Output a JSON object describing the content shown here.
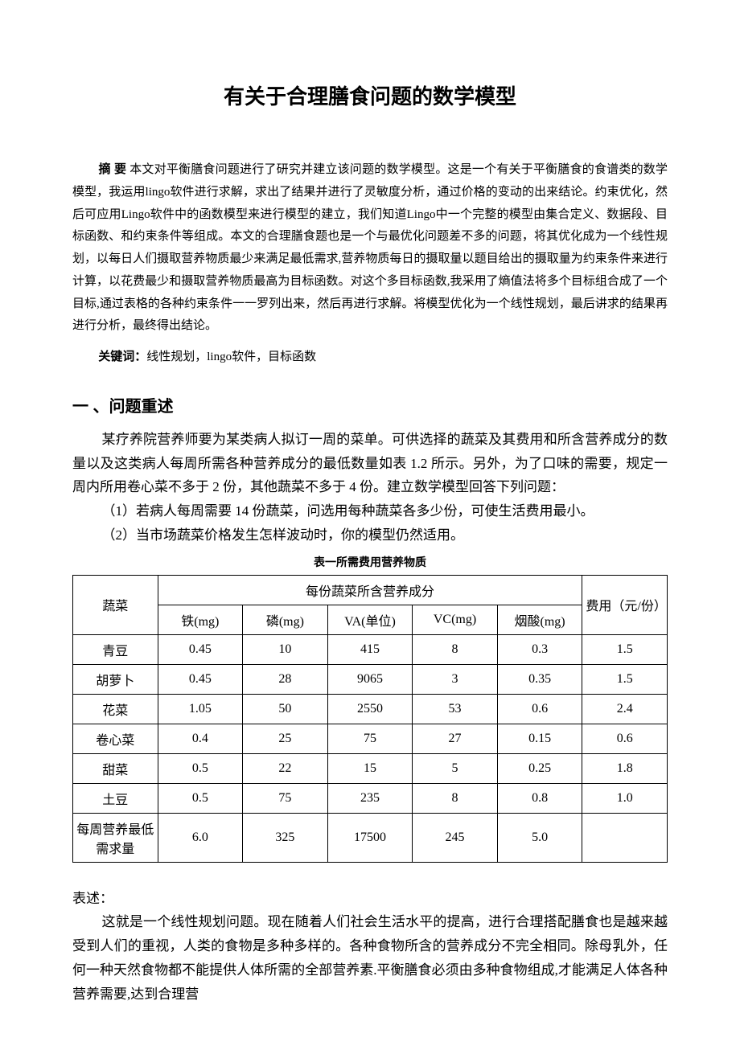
{
  "title": "有关于合理膳食问题的数学模型",
  "abstract": {
    "label": "摘 要",
    "text": " 本文对平衡膳食问题进行了研究并建立该问题的数学模型。这是一个有关于平衡膳食的食谱类的数学模型，我运用lingo软件进行求解，求出了结果并进行了灵敏度分析，通过价格的变动的出来结论。约束优化，然后可应用Lingo软件中的函数模型来进行模型的建立，我们知道Lingo中一个完整的模型由集合定义、数据段、目标函数、和约束条件等组成。本文的合理膳食题也是一个与最优化问题差不多的问题，将其优化成为一个线性规划，以每日人们摄取营养物质最少来满足最低需求,营养物质每日的摄取量以题目给出的摄取量为约束条件来进行计算，以花费最少和摄取营养物质最高为目标函数。对这个多目标函数,我采用了熵值法将多个目标组合成了一个目标,通过表格的各种约束条件一一罗列出来，然后再进行求解。将模型优化为一个线性规划，最后讲求的结果再进行分析，最终得出结论。"
  },
  "keywords": {
    "label": "关键词：",
    "text": "线性规划，lingo软件，目标函数"
  },
  "section1": {
    "heading": "一 、问题重述",
    "p1": "某疗养院营养师要为某类病人拟订一周的菜单。可供选择的蔬菜及其费用和所含营养成分的数量以及这类病人每周所需各种营养成分的最低数量如表 1.2 所示。另外，为了口味的需要，规定一周内所用卷心菜不多于 2 份，其他蔬菜不多于 4 份。建立数学模型回答下列问题：",
    "p2": "（1）若病人每周需要 14 份蔬菜，问选用每种蔬菜各多少份，可使生活费用最小。",
    "p3": "（2）当市场蔬菜价格发生怎样波动时，你的模型仍然适用。"
  },
  "table": {
    "caption": "表一所需费用营养物质",
    "header": {
      "veg": "蔬菜",
      "nutrients": "每份蔬菜所含营养成分",
      "cost": "费用（元/份）",
      "cols": [
        "铁(mg)",
        "磷(mg)",
        "VA(单位)",
        "VC(mg)",
        "烟酸(mg)"
      ]
    },
    "rows": [
      {
        "name": "青豆",
        "iron": "0.45",
        "p": "10",
        "va": "415",
        "vc": "8",
        "niacin": "0.3",
        "cost": "1.5"
      },
      {
        "name": "胡萝卜",
        "iron": "0.45",
        "p": "28",
        "va": "9065",
        "vc": "3",
        "niacin": "0.35",
        "cost": "1.5"
      },
      {
        "name": "花菜",
        "iron": "1.05",
        "p": "50",
        "va": "2550",
        "vc": "53",
        "niacin": "0.6",
        "cost": "2.4"
      },
      {
        "name": "卷心菜",
        "iron": "0.4",
        "p": "25",
        "va": "75",
        "vc": "27",
        "niacin": "0.15",
        "cost": "0.6"
      },
      {
        "name": "甜菜",
        "iron": "0.5",
        "p": "22",
        "va": "15",
        "vc": "5",
        "niacin": "0.25",
        "cost": "1.8"
      },
      {
        "name": "土豆",
        "iron": "0.5",
        "p": "75",
        "va": "235",
        "vc": "8",
        "niacin": "0.8",
        "cost": "1.0"
      }
    ],
    "footer": {
      "name": "每周营养最低需求量",
      "iron": "6.0",
      "p": "325",
      "va": "17500",
      "vc": "245",
      "niacin": "5.0",
      "cost": ""
    }
  },
  "discussion": {
    "label": "表述：",
    "p1": "这就是一个线性规划问题。现在随着人们社会生活水平的提高，进行合理搭配膳食也是越来越受到人们的重视，人类的食物是多种多样的。各种食物所含的营养成分不完全相同。除母乳外，任何一种天然食物都不能提供人体所需的全部营养素.平衡膳食必须由多种食物组成,才能满足人体各种营养需要,达到合理营"
  },
  "style": {
    "background_color": "#ffffff",
    "text_color": "#000000",
    "border_color": "#000000",
    "title_fontsize": 26,
    "body_fontsize": 17,
    "abstract_fontsize": 15,
    "caption_fontsize": 14,
    "table_fontsize": 16
  }
}
